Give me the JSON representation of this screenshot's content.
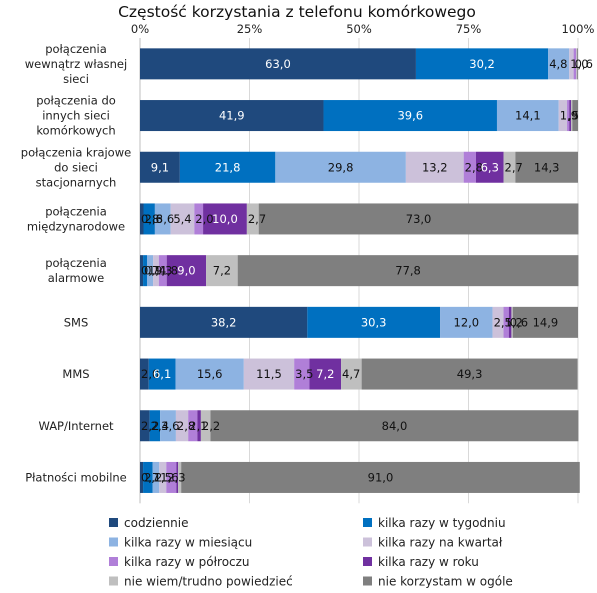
{
  "chart_data": {
    "type": "bar",
    "orientation": "horizontal",
    "stacked": true,
    "title": "Częstość korzystania z telefonu komórkowego",
    "xlim": [
      0,
      100
    ],
    "x_ticks": [
      "0%",
      "25%",
      "50%",
      "75%",
      "100%"
    ],
    "grid": true,
    "legend_position": "bottom",
    "categories": [
      "połączenia wewnątrz własnej sieci",
      "połączenia do innych sieci komórkowych",
      "połączenia krajowe do sieci stacjonarnych",
      "połączenia międzynarodowe",
      "połączenia alarmowe",
      "SMS",
      "MMS",
      "WAP/Internet",
      "Płatności mobilne"
    ],
    "series": [
      {
        "name": "codziennie",
        "color": "#1f497d",
        "values": [
          63.0,
          41.9,
          9.1,
          0.8,
          0.7,
          38.2,
          2.0,
          2.2,
          0.7
        ],
        "labels": [
          "63,0",
          "41,9",
          "9,1",
          "0,8",
          "0,7",
          "38,2",
          "2,0",
          "2,2",
          "0,7"
        ]
      },
      {
        "name": "kilka razy w tygodniu",
        "color": "#0070c0",
        "values": [
          30.2,
          39.6,
          21.8,
          2.6,
          0.9,
          30.3,
          6.1,
          2.4,
          2.2
        ],
        "labels": [
          "30,2",
          "39,6",
          "21,8",
          "2,6",
          "0,9",
          "30,3",
          "6,1",
          "2,4",
          "2,2"
        ]
      },
      {
        "name": "kilka razy w miesiącu",
        "color": "#8db3e2",
        "values": [
          4.8,
          14.1,
          29.8,
          3.6,
          1.4,
          12.0,
          15.6,
          3.6,
          1.5
        ],
        "labels": [
          "4,8",
          "14,1",
          "29,8",
          "3,6",
          "1,4",
          "12,0",
          "15,6",
          "3,6",
          "1,5"
        ]
      },
      {
        "name": "kilka razy na kwartał",
        "color": "#ccc1da",
        "values": [
          1.0,
          1.9,
          13.2,
          5.4,
          1.3,
          2.5,
          11.5,
          2.8,
          1.6
        ],
        "labels": [
          "1,0",
          "1,9",
          "13,2",
          "5,4",
          "1,3",
          "2,5",
          "11,5",
          "2,8",
          "1,6"
        ]
      },
      {
        "name": "kilka razy w półroczu",
        "color": "#b07fd8",
        "values": [
          0.6,
          0.5,
          2.8,
          2.0,
          1.8,
          1.2,
          3.5,
          2.1,
          2.3
        ],
        "labels": [
          "0,6",
          ",5",
          "2,8",
          "2,0",
          "1,8",
          "1,2",
          "3,5",
          "2,1",
          "2,3"
        ]
      },
      {
        "name": "kilka razy w roku",
        "color": "#7030a0",
        "values": [
          0.0,
          0.4,
          6.3,
          10.0,
          9.0,
          0.6,
          7.2,
          0.8,
          0.4
        ],
        "labels": [
          "",
          "",
          "6,3",
          "10,0",
          "9,0",
          "0,6",
          "7,2",
          "",
          ""
        ]
      },
      {
        "name": "nie wiem/trudno powiedzieć",
        "color": "#bfbfbf",
        "values": [
          0.2,
          0.3,
          2.7,
          2.7,
          7.2,
          0.3,
          4.7,
          2.2,
          0.7
        ],
        "labels": [
          "",
          "",
          "2,7",
          "2,7",
          "7,2",
          "",
          "4,7",
          "2,2",
          ""
        ]
      },
      {
        "name": "nie korzystam w ogóle",
        "color": "#7f7f7f",
        "values": [
          0.2,
          1.3,
          14.3,
          73.0,
          77.8,
          14.9,
          49.3,
          84.0,
          91.0
        ],
        "labels": [
          "",
          "",
          "14,3",
          "73,0",
          "77,8",
          "14,9",
          "49,3",
          "84,0",
          "91,0"
        ]
      }
    ]
  }
}
